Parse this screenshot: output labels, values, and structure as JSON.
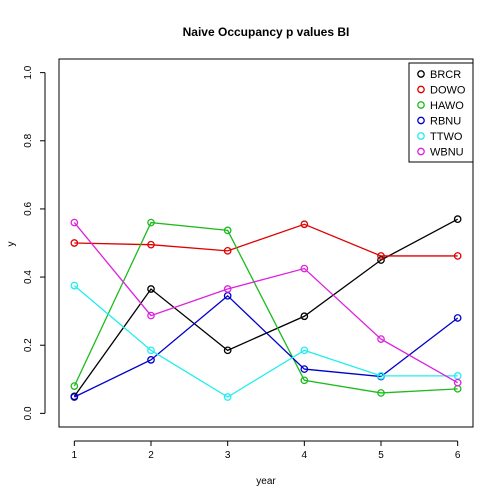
{
  "chart_data": {
    "type": "line",
    "title": "Naive Occupancy p values BI",
    "xlabel": "year",
    "ylabel": "y",
    "x": [
      1,
      2,
      3,
      4,
      5,
      6
    ],
    "x_ticks": [
      "1",
      "2",
      "3",
      "4",
      "5",
      "6"
    ],
    "y_ticks": [
      "0.0",
      "0.2",
      "0.4",
      "0.6",
      "0.8",
      "1.0"
    ],
    "xlim": [
      0.8,
      6.2
    ],
    "ylim": [
      -0.04,
      1.04
    ],
    "grid": false,
    "legend_position": "top-right",
    "series": [
      {
        "name": "BRCR",
        "color": "#000000",
        "values": [
          0.05,
          0.365,
          0.185,
          0.285,
          0.45,
          0.57
        ]
      },
      {
        "name": "DOWO",
        "color": "#DF0000",
        "values": [
          0.5,
          0.495,
          0.477,
          0.555,
          0.462,
          0.462
        ]
      },
      {
        "name": "HAWO",
        "color": "#1DBB1D",
        "values": [
          0.08,
          0.56,
          0.537,
          0.097,
          0.06,
          0.072
        ]
      },
      {
        "name": "RBNU",
        "color": "#0000CC",
        "values": [
          0.048,
          0.157,
          0.345,
          0.13,
          0.108,
          0.28
        ]
      },
      {
        "name": "TTWO",
        "color": "#22EEEE",
        "values": [
          0.375,
          0.185,
          0.048,
          0.185,
          0.11,
          0.11
        ]
      },
      {
        "name": "WBNU",
        "color": "#DD22DD",
        "values": [
          0.56,
          0.287,
          0.365,
          0.425,
          0.218,
          0.09
        ]
      }
    ]
  }
}
